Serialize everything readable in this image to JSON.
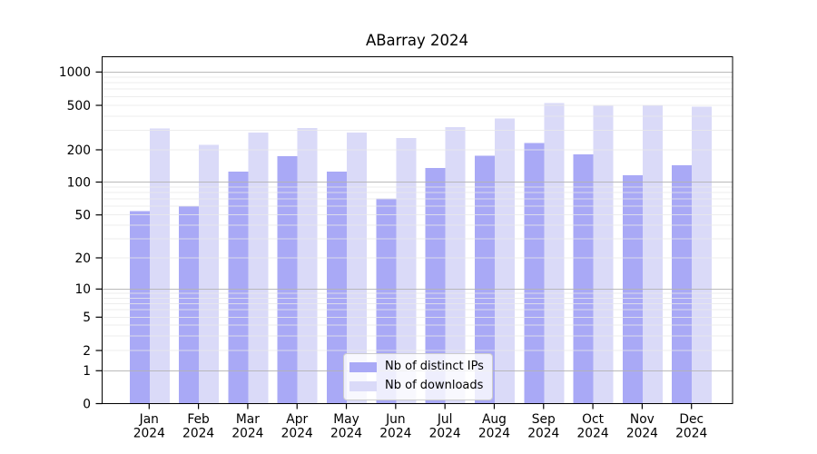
{
  "chart_data": {
    "type": "bar",
    "title": "ABarray 2024",
    "categories": [
      "Jan",
      "Feb",
      "Mar",
      "Apr",
      "May",
      "Jun",
      "Jul",
      "Aug",
      "Sep",
      "Oct",
      "Nov",
      "Dec"
    ],
    "category_year": "2024",
    "series": [
      {
        "name": "Nb of distinct IPs",
        "color": "#a9a9f6",
        "values": [
          54,
          60,
          125,
          174,
          125,
          71,
          136,
          176,
          230,
          182,
          116,
          144
        ]
      },
      {
        "name": "Nb of downloads",
        "color": "#dadaf8",
        "values": [
          310,
          222,
          286,
          312,
          285,
          255,
          318,
          382,
          522,
          494,
          500,
          486
        ]
      }
    ],
    "xlabel": "",
    "ylabel": "",
    "y_scale": "symlog",
    "y_ticks": [
      0,
      1,
      2,
      5,
      10,
      20,
      50,
      100,
      200,
      500,
      1000
    ],
    "ylim": [
      0,
      1300
    ],
    "grid": "horizontal",
    "major_grid_at": [
      1,
      10,
      100,
      1000
    ],
    "legend_position": "lower center",
    "colors": {
      "background": "#ffffff",
      "major_grid": "#b3b3b3",
      "minor_grid": "#e9e9e9",
      "axis": "#000000",
      "text": "#000000",
      "legend_border": "#cccccc",
      "legend_background": "#ffffff"
    }
  }
}
